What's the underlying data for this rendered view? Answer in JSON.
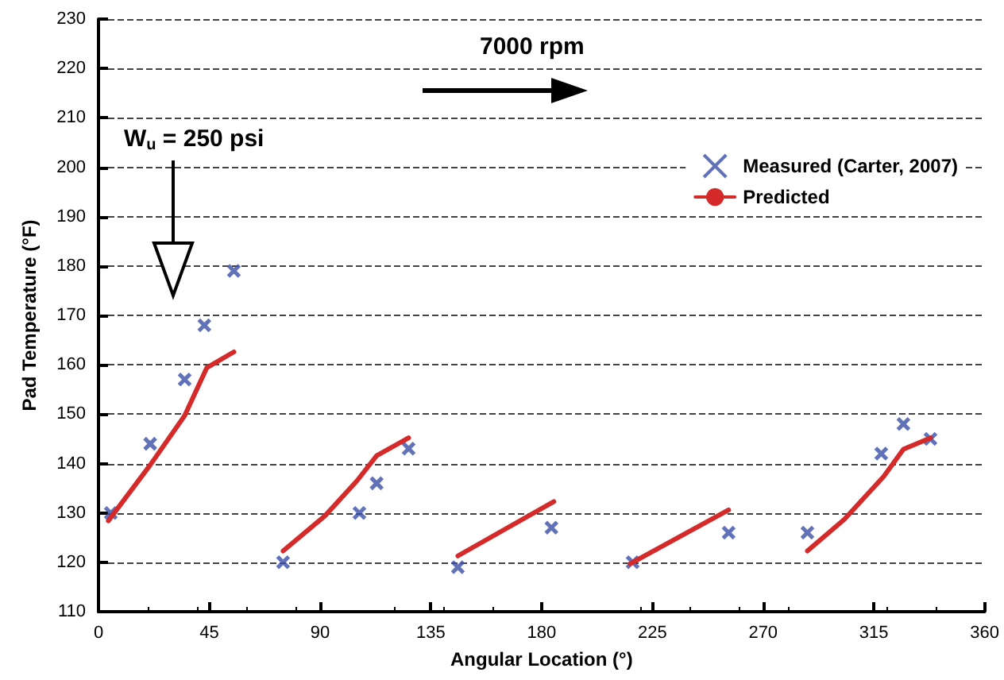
{
  "chart_data": {
    "type": "scatter",
    "xlabel": "Angular Location (°)",
    "ylabel": "Pad Temperature (°F)",
    "xlim": [
      0,
      360
    ],
    "xticks": [
      0,
      45,
      90,
      135,
      180,
      225,
      270,
      315,
      360
    ],
    "ylim": [
      110,
      230
    ],
    "yticks": [
      110,
      120,
      130,
      140,
      150,
      160,
      170,
      180,
      190,
      200,
      210,
      220,
      230
    ],
    "grid": "y",
    "legend": "top right",
    "annotations": [
      "7000 rpm",
      "W$_{u}$ = 250 psi"
    ],
    "series": [
      {
        "name": "Measured (Carter, 2007)",
        "marker": "cross",
        "color": "#3a4fa8",
        "x": [
          5,
          21,
          35,
          43,
          55,
          75,
          106,
          113,
          126,
          146,
          184,
          217,
          256,
          288,
          318,
          327,
          338
        ],
        "values": [
          130,
          144,
          157,
          168,
          179,
          120,
          130,
          136,
          143,
          119,
          127,
          120,
          126,
          126,
          142,
          148,
          145
        ]
      },
      {
        "name": "Predicted",
        "type": "line",
        "marker": "none",
        "line_style": "solid",
        "color": "#d42a2a",
        "x": [
          4,
          21,
          35,
          44,
          55,
          60,
          75,
          92,
          105,
          113,
          126,
          136,
          146,
          185,
          200,
          216,
          256,
          272,
          288,
          303,
          319,
          327,
          338
        ],
        "values": [
          128.4,
          139.7,
          149.7,
          159.4,
          162.6,
          null,
          122.3,
          129.4,
          136.5,
          141.6,
          145.2,
          null,
          121.3,
          132.3,
          null,
          119.7,
          130.6,
          null,
          122.3,
          128.7,
          137.4,
          142.9,
          145.2
        ]
      }
    ]
  }
}
